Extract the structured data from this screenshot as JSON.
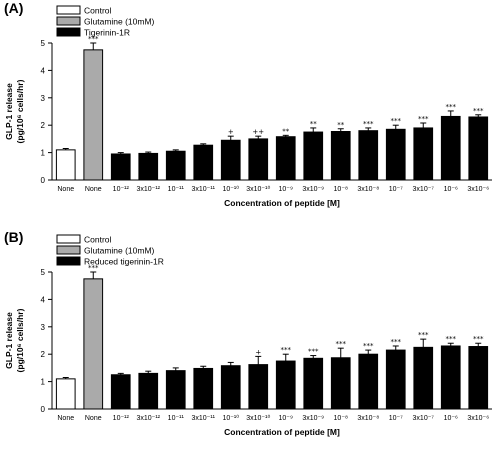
{
  "chart_data": [
    {
      "panel_label": "(A)",
      "type": "bar",
      "legend": [
        {
          "label": "Control",
          "color": "#ffffff"
        },
        {
          "label": "Glutamine (10mM)",
          "color": "#aaaaaa"
        },
        {
          "label": "Tigerinin-1R",
          "color": "#000000"
        }
      ],
      "legend_placement": "top-left",
      "ylabel_line1": "GLP-1 release",
      "ylabel_line2": "(pg/10⁶ cells/hr)",
      "xlabel": "Concentration of peptide [M]",
      "ylim": [
        0,
        5
      ],
      "yticks": [
        "0",
        "1",
        "2",
        "3",
        "4",
        "5"
      ],
      "grid": false,
      "categories": [
        "None",
        "None",
        "10⁻¹²",
        "3x10⁻¹²",
        "10⁻¹¹",
        "3x10⁻¹¹",
        "10⁻¹⁰",
        "3x10⁻¹⁰",
        "10⁻⁹",
        "3x10⁻⁹",
        "10⁻⁸",
        "3x10⁻⁸",
        "10⁻⁷",
        "3x10⁻⁷",
        "10⁻⁶",
        "3x10⁻⁶"
      ],
      "series_index": [
        0,
        1,
        2,
        2,
        2,
        2,
        2,
        2,
        2,
        2,
        2,
        2,
        2,
        2,
        2,
        2
      ],
      "values": [
        1.1,
        4.75,
        0.95,
        0.97,
        1.05,
        1.27,
        1.45,
        1.5,
        1.58,
        1.75,
        1.77,
        1.8,
        1.85,
        1.9,
        2.32,
        2.3
      ],
      "errors": [
        0.05,
        0.25,
        0.05,
        0.05,
        0.05,
        0.05,
        0.15,
        0.1,
        0.05,
        0.15,
        0.1,
        0.1,
        0.15,
        0.18,
        0.2,
        0.08
      ],
      "significance": [
        "",
        "***",
        "",
        "",
        "",
        "",
        "+",
        "++",
        "**",
        "**",
        "**",
        "***",
        "***",
        "***",
        "***",
        "***"
      ]
    },
    {
      "panel_label": "(B)",
      "type": "bar",
      "legend": [
        {
          "label": "Control",
          "color": "#ffffff"
        },
        {
          "label": "Glutamine (10mM)",
          "color": "#aaaaaa"
        },
        {
          "label": "Reduced tigerinin-1R",
          "color": "#000000"
        }
      ],
      "legend_placement": "top-left",
      "ylabel_line1": "GLP-1 release",
      "ylabel_line2": "(pg/10⁶ cells/hr)",
      "xlabel": "Concentration of peptide [M]",
      "ylim": [
        0,
        5
      ],
      "yticks": [
        "0",
        "1",
        "2",
        "3",
        "4",
        "5"
      ],
      "grid": false,
      "categories": [
        "None",
        "None",
        "10⁻¹²",
        "3x10⁻¹²",
        "10⁻¹¹",
        "3x10⁻¹¹",
        "10⁻¹⁰",
        "3x10⁻¹⁰",
        "10⁻⁹",
        "3x10⁻⁹",
        "10⁻⁸",
        "3x10⁻⁸",
        "10⁻⁷",
        "3x10⁻⁷",
        "10⁻⁶",
        "3x10⁻⁶"
      ],
      "series_index": [
        0,
        1,
        2,
        2,
        2,
        2,
        2,
        2,
        2,
        2,
        2,
        2,
        2,
        2,
        2,
        2
      ],
      "values": [
        1.1,
        4.75,
        1.25,
        1.3,
        1.4,
        1.48,
        1.58,
        1.62,
        1.75,
        1.85,
        1.87,
        2.0,
        2.15,
        2.25,
        2.3,
        2.28
      ],
      "errors": [
        0.05,
        0.25,
        0.05,
        0.08,
        0.1,
        0.08,
        0.12,
        0.3,
        0.25,
        0.1,
        0.35,
        0.15,
        0.15,
        0.3,
        0.1,
        0.12
      ],
      "significance": [
        "",
        "***",
        "",
        "",
        "",
        "",
        "",
        "+",
        "***",
        "***",
        "***",
        "***",
        "***",
        "***",
        "***",
        "***"
      ]
    }
  ]
}
